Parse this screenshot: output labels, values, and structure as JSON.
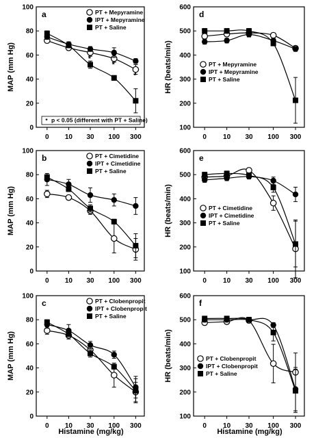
{
  "figure": {
    "shared_xlabel": "Histamine (mg/kg)"
  },
  "chart_data": [
    {
      "id": "a",
      "panel_label": "a",
      "type": "line",
      "ylabel": "MAP (mm Hg)",
      "ylim": [
        0,
        100
      ],
      "yticks": [
        0,
        20,
        40,
        60,
        80,
        100
      ],
      "categories": [
        "0",
        "10",
        "30",
        "100",
        "300"
      ],
      "legend_position": "top-right",
      "series": [
        {
          "name": "PT + Mepyramine",
          "marker": "circle-open",
          "values": [
            72,
            66,
            62,
            57,
            48
          ],
          "errors": [
            2,
            2,
            3,
            3,
            4
          ]
        },
        {
          "name": "IPT + Mepyramine",
          "marker": "circle-filled",
          "values": [
            75,
            69,
            65,
            62,
            55
          ],
          "errors": [
            2,
            2,
            2,
            4,
            2
          ]
        },
        {
          "name": "PT + Saline",
          "marker": "square-filled",
          "values": [
            78,
            68,
            52,
            41,
            22
          ],
          "errors": [
            2,
            2,
            3,
            2,
            10
          ]
        }
      ],
      "annotations": {
        "asterisks": [
          {
            "x": "30",
            "y": 58
          },
          {
            "x": "100",
            "y": 53
          },
          {
            "x": "300",
            "y": 44
          }
        ],
        "footnote": "p < 0.05 (different with PT + Saline)",
        "footnote_symbol": "*"
      }
    },
    {
      "id": "d",
      "panel_label": "d",
      "type": "line",
      "ylabel": "HR (beats/min)",
      "ylim": [
        100,
        600
      ],
      "yticks": [
        100,
        200,
        300,
        400,
        500,
        600
      ],
      "categories": [
        "0",
        "10",
        "30",
        "100",
        "300"
      ],
      "legend_position": "bottom-left",
      "series": [
        {
          "name": "PT + Mepyramine",
          "marker": "circle-open",
          "values": [
            478,
            487,
            492,
            482,
            428
          ],
          "errors": [
            10,
            10,
            8,
            10,
            10
          ]
        },
        {
          "name": "IPT + Mepyramine",
          "marker": "circle-filled",
          "values": [
            455,
            460,
            485,
            460,
            425
          ],
          "errors": [
            10,
            10,
            10,
            10,
            10
          ]
        },
        {
          "name": "PT + Saline",
          "marker": "square-filled",
          "values": [
            500,
            500,
            500,
            448,
            212
          ],
          "errors": [
            10,
            10,
            10,
            10,
            95
          ]
        }
      ]
    },
    {
      "id": "b",
      "panel_label": "b",
      "type": "line",
      "ylabel": "MAP (mm Hg)",
      "ylim": [
        0,
        100
      ],
      "yticks": [
        0,
        20,
        40,
        60,
        80,
        100
      ],
      "categories": [
        "0",
        "10",
        "30",
        "100",
        "300"
      ],
      "legend_position": "top-right",
      "series": [
        {
          "name": "PT + Cimetidine",
          "marker": "circle-open",
          "values": [
            64,
            61,
            50,
            27,
            18
          ],
          "errors": [
            3,
            2,
            3,
            12,
            9
          ]
        },
        {
          "name": "IPT + Cimetidine",
          "marker": "circle-filled",
          "values": [
            76,
            72,
            63,
            59,
            54
          ],
          "errors": [
            5,
            4,
            6,
            5,
            7
          ]
        },
        {
          "name": "PT + Saline",
          "marker": "square-filled",
          "values": [
            78,
            68,
            52,
            41,
            21
          ],
          "errors": [
            2,
            2,
            3,
            2,
            10
          ]
        }
      ]
    },
    {
      "id": "e",
      "panel_label": "e",
      "type": "line",
      "ylabel": "HR (beats/min)",
      "ylim": [
        100,
        600
      ],
      "yticks": [
        100,
        200,
        300,
        400,
        500,
        600
      ],
      "categories": [
        "0",
        "10",
        "30",
        "100",
        "300"
      ],
      "legend_position": "bottom-left",
      "series": [
        {
          "name": "PT + Cimetidine",
          "marker": "circle-open",
          "values": [
            490,
            495,
            518,
            382,
            192
          ],
          "errors": [
            10,
            10,
            10,
            30,
            120
          ]
        },
        {
          "name": "IPT + Cimetidine",
          "marker": "circle-filled",
          "values": [
            478,
            485,
            492,
            475,
            418
          ],
          "errors": [
            10,
            10,
            10,
            15,
            30
          ]
        },
        {
          "name": "PT + Saline",
          "marker": "square-filled",
          "values": [
            500,
            505,
            497,
            447,
            212
          ],
          "errors": [
            10,
            10,
            10,
            20,
            95
          ]
        }
      ]
    },
    {
      "id": "c",
      "panel_label": "c",
      "type": "line",
      "ylabel": "MAP (mm Hg)",
      "ylim": [
        0,
        100
      ],
      "yticks": [
        0,
        20,
        40,
        60,
        80,
        100
      ],
      "categories": [
        "0",
        "10",
        "30",
        "100",
        "300"
      ],
      "legend_position": "top-right",
      "series": [
        {
          "name": "PT + Clobenpropit",
          "marker": "circle-open",
          "values": [
            71,
            67,
            55,
            34,
            20
          ],
          "errors": [
            3,
            3,
            4,
            10,
            8
          ]
        },
        {
          "name": "IPT + Clobenpropit",
          "marker": "circle-filled",
          "values": [
            76,
            71,
            59,
            51,
            24
          ],
          "errors": [
            3,
            5,
            3,
            3,
            9
          ]
        },
        {
          "name": "PT + Saline",
          "marker": "square-filled",
          "values": [
            78,
            68,
            52,
            41,
            21
          ],
          "errors": [
            2,
            2,
            3,
            2,
            10
          ]
        }
      ]
    },
    {
      "id": "f",
      "panel_label": "f",
      "type": "line",
      "ylabel": "HR (beats/min)",
      "ylim": [
        100,
        600
      ],
      "yticks": [
        100,
        200,
        300,
        400,
        500,
        600
      ],
      "categories": [
        "0",
        "10",
        "30",
        "100",
        "300"
      ],
      "legend_position": "bottom-left",
      "series": [
        {
          "name": "PT + Clobenpropit",
          "marker": "circle-open",
          "values": [
            488,
            492,
            497,
            318,
            282
          ],
          "errors": [
            10,
            10,
            10,
            80,
            80
          ]
        },
        {
          "name": "IPT + Clobenpropit",
          "marker": "circle-filled",
          "values": [
            500,
            500,
            500,
            478,
            212
          ],
          "errors": [
            10,
            10,
            10,
            10,
            90
          ]
        },
        {
          "name": "PT + Saline",
          "marker": "square-filled",
          "values": [
            505,
            505,
            500,
            447,
            205
          ],
          "errors": [
            10,
            10,
            10,
            35,
            90
          ]
        }
      ]
    }
  ]
}
